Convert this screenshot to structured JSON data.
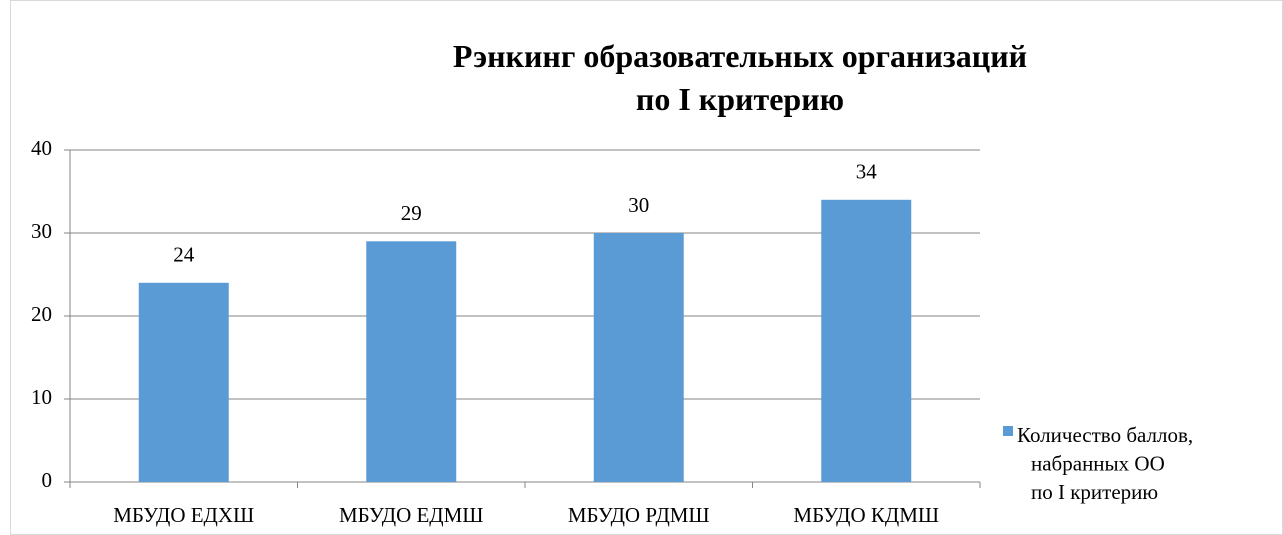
{
  "chart_data": {
    "type": "bar",
    "title": "Рэнкинг образовательных организаций\nпо I критерию",
    "categories": [
      "МБУДО ЕДХШ",
      "МБУДО ЕДМШ",
      "МБУДО РДМШ",
      "МБУДО КДМШ"
    ],
    "series": [
      {
        "name": "Количество баллов,\nнабранных ОО\nпо I критерию",
        "color": "#5b9bd5",
        "values": [
          24,
          29,
          30,
          34
        ]
      }
    ],
    "ylim": [
      0,
      40
    ],
    "yticks": [
      0,
      10,
      20,
      30,
      40
    ],
    "grid": true,
    "data_labels": true,
    "legend": "right"
  }
}
